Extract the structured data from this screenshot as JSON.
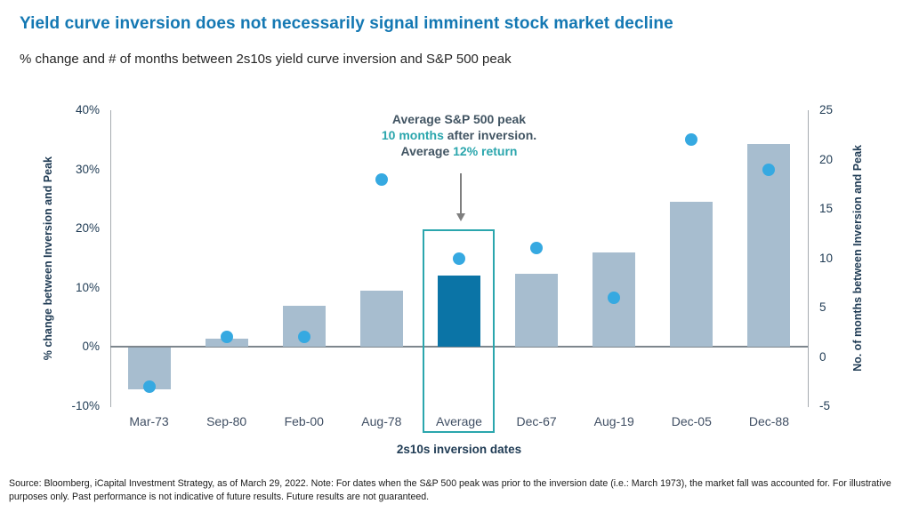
{
  "header": {
    "title": "Yield curve inversion does not necessarily signal imminent stock market decline",
    "subtitle": "% change and # of months between 2s10s yield curve inversion and S&P 500 peak"
  },
  "chart_data": {
    "type": "bar",
    "subtype": "combo-bar-scatter-dual-axis",
    "categories": [
      "Mar-73",
      "Sep-80",
      "Feb-00",
      "Aug-78",
      "Average",
      "Dec-67",
      "Aug-19",
      "Dec-05",
      "Dec-88"
    ],
    "series": [
      {
        "name": "% change between Inversion and Peak",
        "type": "bar",
        "axis": "left",
        "values": [
          -7,
          1.4,
          7,
          9.5,
          12,
          12.3,
          16,
          24.5,
          34.3
        ]
      },
      {
        "name": "No. of months between Inversion and Peak",
        "type": "scatter",
        "axis": "right",
        "values": [
          -3,
          2,
          2,
          18,
          10,
          11,
          6,
          22,
          19
        ]
      }
    ],
    "left_axis": {
      "label": "% change between Inversion and Peak",
      "min": -10,
      "max": 40,
      "ticks": [
        "40%",
        "30%",
        "20%",
        "10%",
        "0%",
        "-10%"
      ],
      "tick_values": [
        40,
        30,
        20,
        10,
        0,
        -10
      ]
    },
    "right_axis": {
      "label": "No. of months between Inversion and Peak",
      "min": -5,
      "max": 25,
      "ticks": [
        "25",
        "20",
        "15",
        "10",
        "5",
        "0",
        "-5"
      ],
      "tick_values": [
        25,
        20,
        15,
        10,
        5,
        0,
        -5
      ]
    },
    "xlabel": "2s10s inversion dates",
    "highlight_category": "Average",
    "grid": "off",
    "legend": "none"
  },
  "annotation": {
    "line1": "Average S&P 500 peak",
    "line2_highlight": "10 months",
    "line2_rest": " after inversion.",
    "line3_prefix": "Average ",
    "line3_highlight": "12% return"
  },
  "colors": {
    "title": "#1478B3",
    "bar_default": "#A7BDCF",
    "bar_highlight": "#0B74A6",
    "dot": "#36A9E1",
    "teal_accent": "#2BA6AD",
    "axis_text": "#1F3B54",
    "annotation_text": "#425563",
    "zero_line": "#7D868D"
  },
  "footer": {
    "line1": "Source: Bloomberg, iCapital Investment Strategy, as of March 29, 2022. Note: For dates when the S&P 500 peak was prior to the inversion date (i.e.: March 1973), the market fall was accounted for. For illustrative",
    "line2": "purposes only. Past performance is not indicative of future results. Future results are not guaranteed."
  }
}
